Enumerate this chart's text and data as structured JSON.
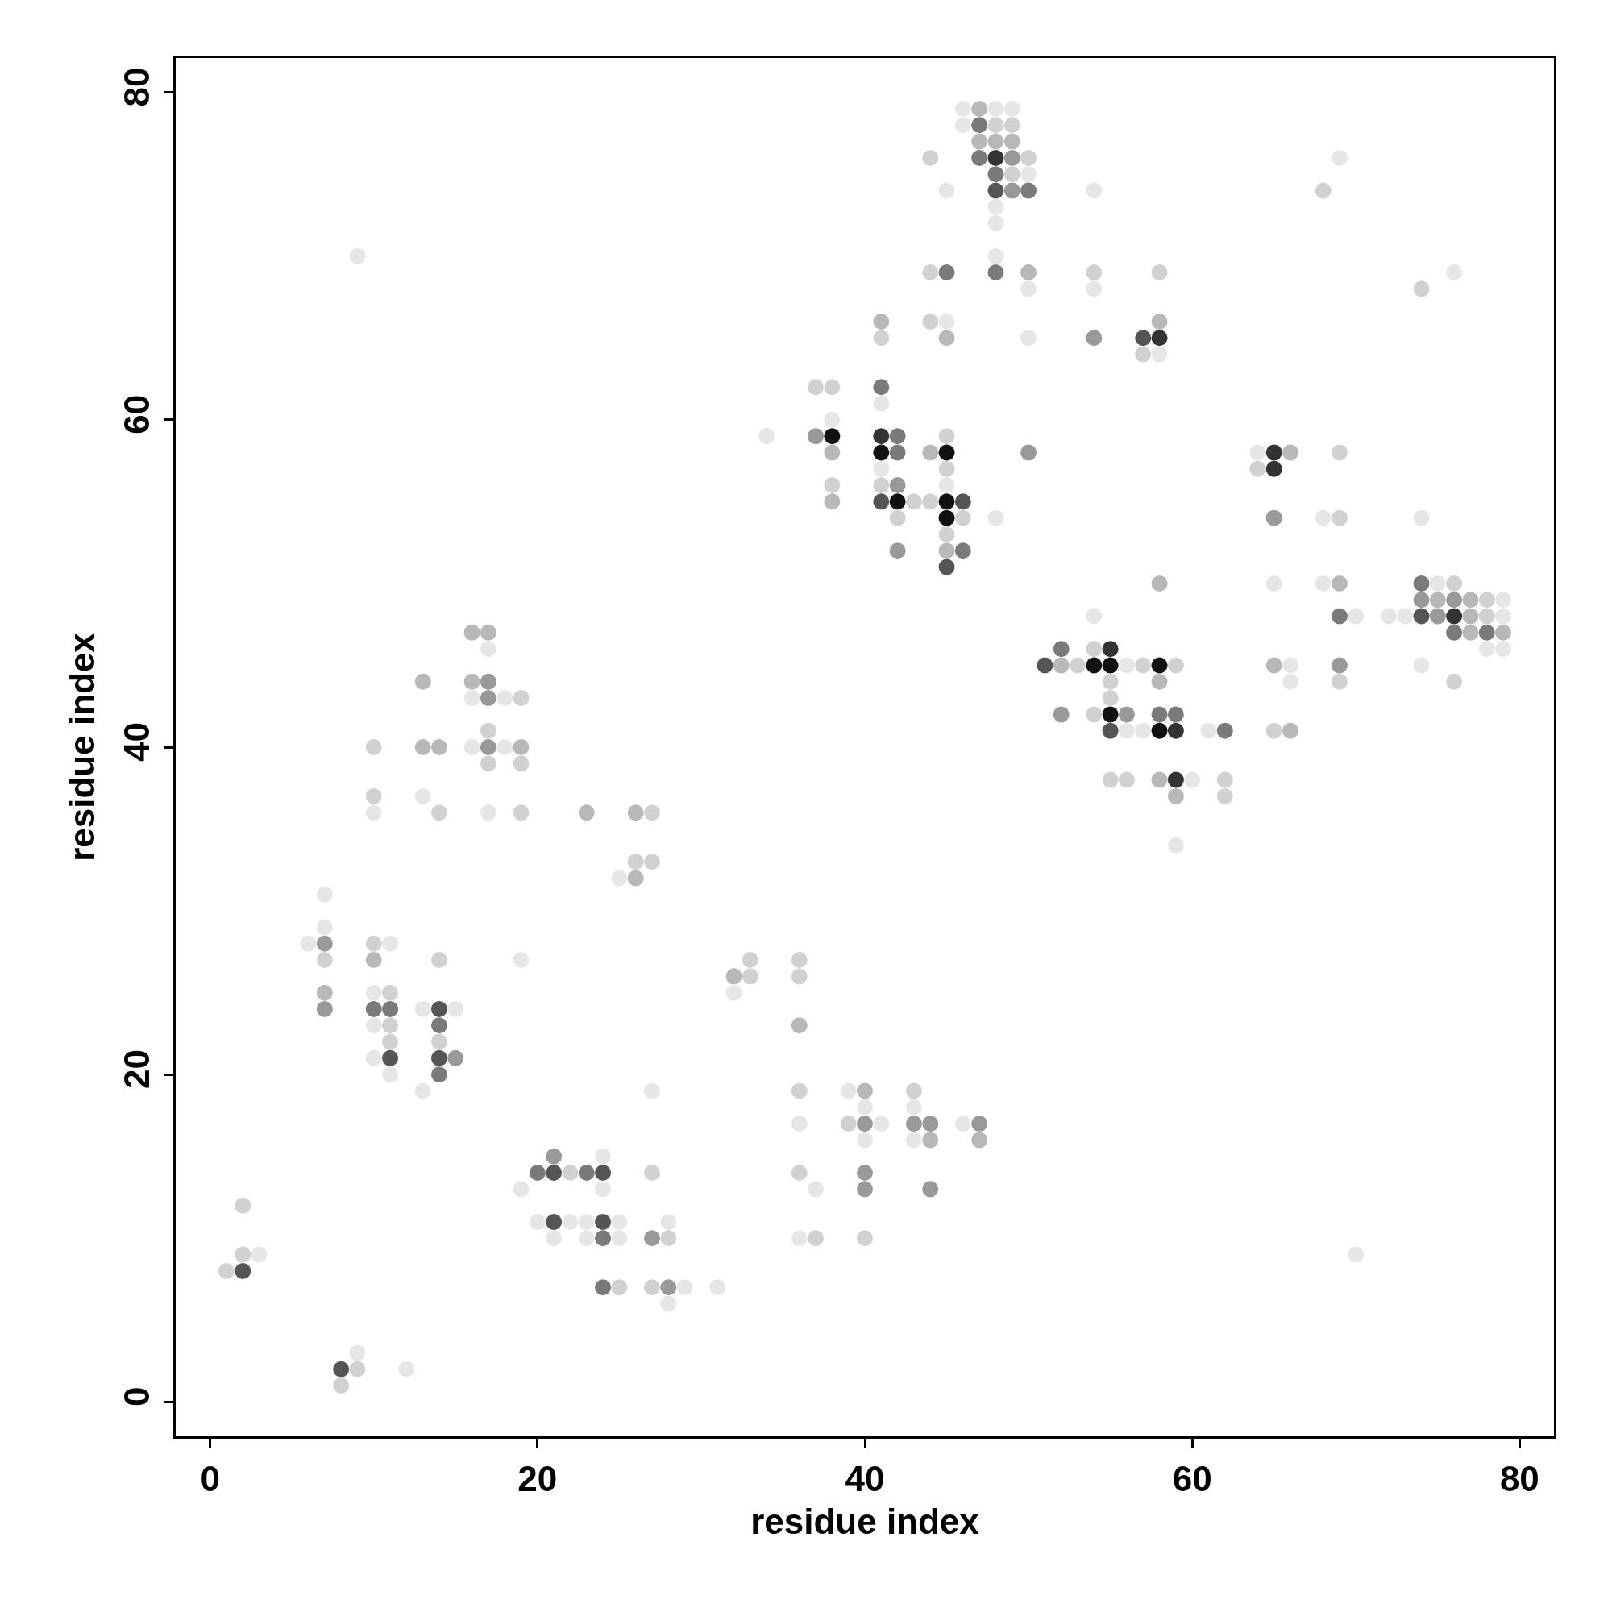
{
  "chart_data": {
    "type": "scatter",
    "xlabel": "residue index",
    "ylabel": "residue index",
    "xlim": [
      -2.1,
      82.1
    ],
    "ylim": [
      -2.1,
      82.1
    ],
    "xticks": [
      0,
      20,
      40,
      60,
      80
    ],
    "yticks": [
      0,
      20,
      40,
      60,
      80
    ],
    "marker": "circle",
    "series": [
      {
        "x": [
          46,
          47,
          48,
          49,
          46,
          47,
          48,
          49,
          47,
          48,
          49,
          44,
          47,
          48,
          49,
          50,
          69,
          48,
          49,
          50,
          45,
          48,
          49,
          50,
          54,
          68,
          48,
          48,
          9,
          48,
          44,
          45,
          48,
          50,
          54,
          58,
          76,
          50,
          54,
          74,
          41,
          44,
          45,
          58,
          41,
          45,
          50,
          54,
          57,
          58,
          57,
          58,
          37,
          38,
          41,
          41,
          38,
          34,
          37,
          38,
          41,
          42,
          45,
          38,
          41,
          42,
          44,
          45,
          50,
          64,
          65,
          66,
          69,
          41,
          45,
          64,
          65,
          38,
          41,
          42,
          45,
          38,
          41,
          42,
          43,
          44,
          45,
          46,
          42,
          45,
          46,
          48,
          65,
          68,
          69,
          74,
          45,
          42,
          45,
          46,
          45,
          58,
          65,
          68,
          69,
          74,
          75,
          76,
          74,
          75,
          76,
          77,
          78,
          79,
          54,
          69,
          70,
          72,
          73,
          74,
          75,
          76,
          77,
          78,
          79,
          16,
          17,
          76,
          77,
          78,
          79,
          17,
          52,
          54,
          55,
          78,
          79,
          51,
          52,
          53,
          54,
          55,
          56,
          57,
          58,
          59,
          65,
          66,
          69,
          74,
          13,
          16,
          17,
          55,
          58,
          66,
          69,
          76,
          16,
          17,
          18,
          19,
          55,
          52,
          54,
          55,
          56,
          58,
          59,
          17,
          55,
          56,
          57,
          58,
          59,
          61,
          62,
          65,
          66,
          10,
          13,
          14,
          16,
          17,
          18,
          19,
          17,
          19,
          55,
          56,
          58,
          59,
          60,
          62,
          10,
          13,
          59,
          62,
          10,
          14,
          17,
          19,
          23,
          26,
          27,
          59,
          26,
          27,
          25,
          26,
          7,
          7,
          6,
          7,
          10,
          11,
          7,
          10,
          14,
          19,
          33,
          36,
          32,
          33,
          36,
          7,
          10,
          11,
          32,
          7,
          10,
          11,
          13,
          14,
          15,
          10,
          11,
          14,
          36,
          11,
          14,
          10,
          11,
          14,
          15,
          11,
          14,
          13,
          27,
          36,
          39,
          40,
          43,
          40,
          43,
          36,
          39,
          40,
          41,
          43,
          44,
          46,
          47,
          40,
          43,
          44,
          47,
          21,
          24,
          20,
          21,
          22,
          23,
          24,
          27,
          36,
          40,
          19,
          24,
          37,
          40,
          44,
          2,
          20,
          21,
          22,
          23,
          24,
          25,
          28,
          21,
          23,
          24,
          25,
          27,
          28,
          36,
          37,
          40,
          2,
          3,
          70,
          1,
          2,
          24,
          25,
          27,
          28,
          29,
          31,
          28,
          9,
          8,
          9,
          12,
          8
        ],
        "values": [
          79,
          79,
          79,
          79,
          78,
          78,
          78,
          78,
          77,
          77,
          77,
          76,
          76,
          76,
          76,
          76,
          76,
          75,
          75,
          75,
          74,
          74,
          74,
          74,
          74,
          74,
          73,
          72,
          70,
          70,
          69,
          69,
          69,
          69,
          69,
          69,
          69,
          68,
          68,
          68,
          66,
          66,
          66,
          66,
          65,
          65,
          65,
          65,
          65,
          65,
          64,
          64,
          62,
          62,
          62,
          61,
          60,
          59,
          59,
          59,
          59,
          59,
          59,
          58,
          58,
          58,
          58,
          58,
          58,
          58,
          58,
          58,
          58,
          57,
          57,
          57,
          57,
          56,
          56,
          56,
          56,
          55,
          55,
          55,
          55,
          55,
          55,
          55,
          54,
          54,
          54,
          54,
          54,
          54,
          54,
          54,
          53,
          52,
          52,
          52,
          51,
          50,
          50,
          50,
          50,
          50,
          50,
          50,
          49,
          49,
          49,
          49,
          49,
          49,
          48,
          48,
          48,
          48,
          48,
          48,
          48,
          48,
          48,
          48,
          48,
          47,
          47,
          47,
          47,
          47,
          47,
          46,
          46,
          46,
          46,
          46,
          46,
          45,
          45,
          45,
          45,
          45,
          45,
          45,
          45,
          45,
          45,
          45,
          45,
          45,
          44,
          44,
          44,
          44,
          44,
          44,
          44,
          44,
          43,
          43,
          43,
          43,
          43,
          42,
          42,
          42,
          42,
          42,
          42,
          41,
          41,
          41,
          41,
          41,
          41,
          41,
          41,
          41,
          41,
          40,
          40,
          40,
          40,
          40,
          40,
          40,
          39,
          39,
          38,
          38,
          38,
          38,
          38,
          38,
          37,
          37,
          37,
          37,
          36,
          36,
          36,
          36,
          36,
          36,
          36,
          34,
          33,
          33,
          32,
          32,
          31,
          29,
          28,
          28,
          28,
          28,
          27,
          27,
          27,
          27,
          27,
          27,
          26,
          26,
          26,
          25,
          25,
          25,
          25,
          24,
          24,
          24,
          24,
          24,
          24,
          23,
          23,
          23,
          23,
          22,
          22,
          21,
          21,
          21,
          21,
          20,
          20,
          19,
          19,
          19,
          19,
          19,
          19,
          18,
          18,
          17,
          17,
          17,
          17,
          17,
          17,
          17,
          17,
          16,
          16,
          16,
          16,
          15,
          15,
          14,
          14,
          14,
          14,
          14,
          14,
          14,
          14,
          13,
          13,
          13,
          13,
          13,
          12,
          11,
          11,
          11,
          11,
          11,
          11,
          11,
          10,
          10,
          10,
          10,
          10,
          10,
          10,
          10,
          10,
          9,
          9,
          9,
          8,
          8,
          7,
          7,
          7,
          7,
          7,
          7,
          6,
          3,
          2,
          2,
          2,
          1
        ],
        "colors": [
          "#e6e6e6",
          "#b8b8b8",
          "#e6e6e6",
          "#e6e6e6",
          "#e6e6e6",
          "#7a7a7a",
          "#d1d1d1",
          "#d1d1d1",
          "#b8b8b8",
          "#b8b8b8",
          "#b8b8b8",
          "#d1d1d1",
          "#7a7a7a",
          "#333333",
          "#999999",
          "#d1d1d1",
          "#e6e6e6",
          "#7a7a7a",
          "#d1d1d1",
          "#e6e6e6",
          "#e6e6e6",
          "#555555",
          "#999999",
          "#7a7a7a",
          "#e6e6e6",
          "#d1d1d1",
          "#e6e6e6",
          "#e6e6e6",
          "#e6e6e6",
          "#e6e6e6",
          "#d1d1d1",
          "#7a7a7a",
          "#7a7a7a",
          "#b8b8b8",
          "#d1d1d1",
          "#d1d1d1",
          "#e6e6e6",
          "#e6e6e6",
          "#e6e6e6",
          "#d1d1d1",
          "#b8b8b8",
          "#d1d1d1",
          "#e6e6e6",
          "#b8b8b8",
          "#d1d1d1",
          "#b8b8b8",
          "#e6e6e6",
          "#999999",
          "#555555",
          "#333333",
          "#d1d1d1",
          "#e6e6e6",
          "#d1d1d1",
          "#d1d1d1",
          "#7a7a7a",
          "#e6e6e6",
          "#e6e6e6",
          "#e6e6e6",
          "#999999",
          "#111111",
          "#333333",
          "#7a7a7a",
          "#d1d1d1",
          "#b8b8b8",
          "#111111",
          "#7a7a7a",
          "#b8b8b8",
          "#111111",
          "#999999",
          "#e6e6e6",
          "#333333",
          "#b8b8b8",
          "#d1d1d1",
          "#e6e6e6",
          "#d1d1d1",
          "#d1d1d1",
          "#333333",
          "#d1d1d1",
          "#d1d1d1",
          "#999999",
          "#e6e6e6",
          "#b8b8b8",
          "#555555",
          "#111111",
          "#d1d1d1",
          "#d1d1d1",
          "#111111",
          "#555555",
          "#d1d1d1",
          "#111111",
          "#d1d1d1",
          "#e6e6e6",
          "#999999",
          "#e6e6e6",
          "#d1d1d1",
          "#e6e6e6",
          "#d1d1d1",
          "#999999",
          "#b8b8b8",
          "#7a7a7a",
          "#555555",
          "#b8b8b8",
          "#e6e6e6",
          "#e6e6e6",
          "#b8b8b8",
          "#7a7a7a",
          "#e6e6e6",
          "#d1d1d1",
          "#999999",
          "#b8b8b8",
          "#999999",
          "#b8b8b8",
          "#d1d1d1",
          "#e6e6e6",
          "#e6e6e6",
          "#7a7a7a",
          "#e6e6e6",
          "#e6e6e6",
          "#e6e6e6",
          "#555555",
          "#999999",
          "#333333",
          "#b8b8b8",
          "#d1d1d1",
          "#e6e6e6",
          "#b8b8b8",
          "#b8b8b8",
          "#7a7a7a",
          "#b8b8b8",
          "#7a7a7a",
          "#b8b8b8",
          "#e6e6e6",
          "#7a7a7a",
          "#d1d1d1",
          "#333333",
          "#e6e6e6",
          "#e6e6e6",
          "#555555",
          "#b8b8b8",
          "#d1d1d1",
          "#111111",
          "#111111",
          "#e6e6e6",
          "#d1d1d1",
          "#111111",
          "#d1d1d1",
          "#b8b8b8",
          "#e6e6e6",
          "#999999",
          "#e6e6e6",
          "#b8b8b8",
          "#b8b8b8",
          "#999999",
          "#d1d1d1",
          "#b8b8b8",
          "#e6e6e6",
          "#d1d1d1",
          "#d1d1d1",
          "#e6e6e6",
          "#999999",
          "#e6e6e6",
          "#d1d1d1",
          "#d1d1d1",
          "#999999",
          "#d1d1d1",
          "#111111",
          "#999999",
          "#7a7a7a",
          "#7a7a7a",
          "#d1d1d1",
          "#555555",
          "#e6e6e6",
          "#e6e6e6",
          "#111111",
          "#333333",
          "#e6e6e6",
          "#7a7a7a",
          "#d1d1d1",
          "#b8b8b8",
          "#d1d1d1",
          "#b8b8b8",
          "#b8b8b8",
          "#e6e6e6",
          "#999999",
          "#e6e6e6",
          "#b8b8b8",
          "#d1d1d1",
          "#d1d1d1",
          "#d1d1d1",
          "#d1d1d1",
          "#b8b8b8",
          "#333333",
          "#e6e6e6",
          "#d1d1d1",
          "#d1d1d1",
          "#e6e6e6",
          "#b8b8b8",
          "#d1d1d1",
          "#e6e6e6",
          "#d1d1d1",
          "#e6e6e6",
          "#d1d1d1",
          "#b8b8b8",
          "#b8b8b8",
          "#d1d1d1",
          "#e6e6e6",
          "#d1d1d1",
          "#d1d1d1",
          "#e6e6e6",
          "#b8b8b8",
          "#e6e6e6",
          "#e6e6e6",
          "#e6e6e6",
          "#999999",
          "#d1d1d1",
          "#e6e6e6",
          "#d1d1d1",
          "#b8b8b8",
          "#d1d1d1",
          "#e6e6e6",
          "#d1d1d1",
          "#d1d1d1",
          "#b8b8b8",
          "#d1d1d1",
          "#d1d1d1",
          "#b8b8b8",
          "#e6e6e6",
          "#d1d1d1",
          "#e6e6e6",
          "#999999",
          "#7a7a7a",
          "#7a7a7a",
          "#e6e6e6",
          "#555555",
          "#e6e6e6",
          "#e6e6e6",
          "#d1d1d1",
          "#7a7a7a",
          "#b8b8b8",
          "#d1d1d1",
          "#d1d1d1",
          "#e6e6e6",
          "#555555",
          "#555555",
          "#999999",
          "#e6e6e6",
          "#7a7a7a",
          "#e6e6e6",
          "#e6e6e6",
          "#d1d1d1",
          "#e6e6e6",
          "#b8b8b8",
          "#d1d1d1",
          "#e6e6e6",
          "#e6e6e6",
          "#e6e6e6",
          "#d1d1d1",
          "#999999",
          "#e6e6e6",
          "#999999",
          "#999999",
          "#e6e6e6",
          "#999999",
          "#e6e6e6",
          "#e6e6e6",
          "#b8b8b8",
          "#b8b8b8",
          "#999999",
          "#e6e6e6",
          "#7a7a7a",
          "#555555",
          "#d1d1d1",
          "#7a7a7a",
          "#555555",
          "#d1d1d1",
          "#d1d1d1",
          "#999999",
          "#e6e6e6",
          "#e6e6e6",
          "#e6e6e6",
          "#999999",
          "#999999",
          "#d1d1d1",
          "#e6e6e6",
          "#555555",
          "#e6e6e6",
          "#e6e6e6",
          "#555555",
          "#e6e6e6",
          "#e6e6e6",
          "#e6e6e6",
          "#e6e6e6",
          "#7a7a7a",
          "#e6e6e6",
          "#999999",
          "#d1d1d1",
          "#e6e6e6",
          "#d1d1d1",
          "#d1d1d1",
          "#d1d1d1",
          "#e6e6e6",
          "#e6e6e6",
          "#d1d1d1",
          "#555555",
          "#7a7a7a",
          "#d1d1d1",
          "#d1d1d1",
          "#999999",
          "#e6e6e6",
          "#e6e6e6",
          "#e6e6e6",
          "#e6e6e6",
          "#555555",
          "#d1d1d1",
          "#e6e6e6",
          "#d1d1d1"
        ]
      }
    ]
  }
}
